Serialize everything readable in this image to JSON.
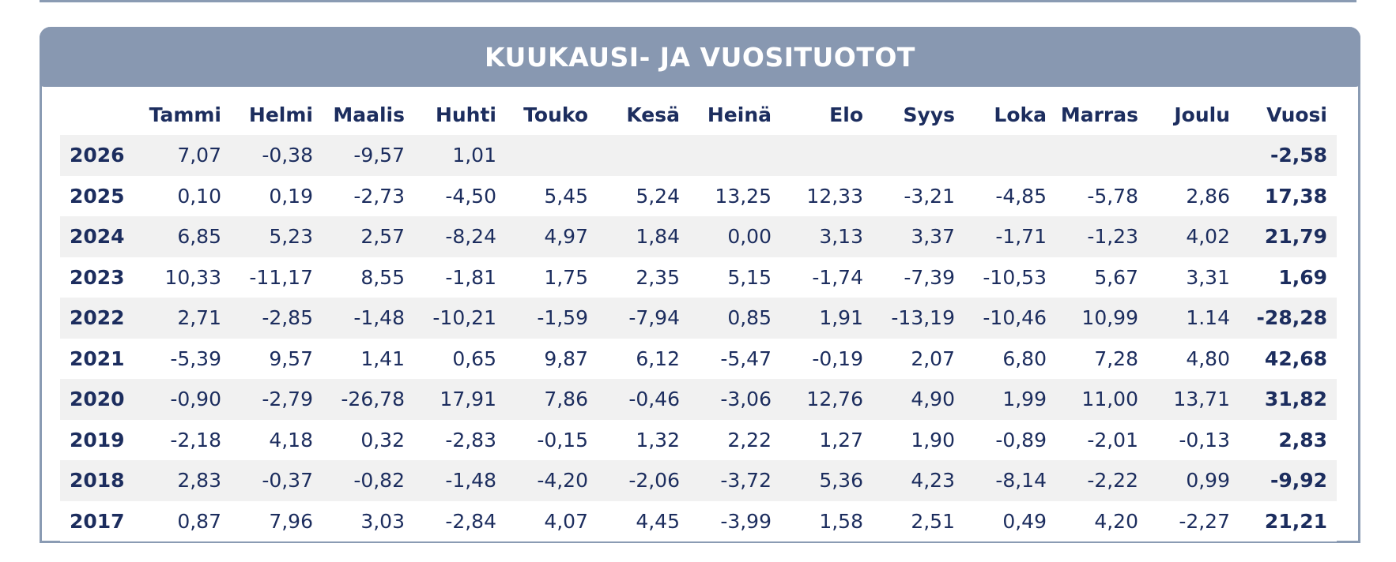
{
  "title": "KUUKAUSI- JA VUOSITUOTOT",
  "colors": {
    "header_bg": "#8898b1",
    "border": "#8a9bb3",
    "text": "#1c2d5e",
    "stripe": "#f1f1f1"
  },
  "columns": [
    "",
    "Tammi",
    "Helmi",
    "Maalis",
    "Huhti",
    "Touko",
    "Kesä",
    "Heinä",
    "Elo",
    "Syys",
    "Loka",
    "Marras",
    "Joulu",
    "Vuosi"
  ],
  "rows": [
    {
      "year": "2026",
      "months": [
        "7,07",
        "-0,38",
        "-9,57",
        "1,01",
        "",
        "",
        "",
        "",
        "",
        "",
        "",
        ""
      ],
      "total": "-2,58"
    },
    {
      "year": "2025",
      "months": [
        "0,10",
        "0,19",
        "-2,73",
        "-4,50",
        "5,45",
        "5,24",
        "13,25",
        "12,33",
        "-3,21",
        "-4,85",
        "-5,78",
        "2,86"
      ],
      "total": "17,38"
    },
    {
      "year": "2024",
      "months": [
        "6,85",
        "5,23",
        "2,57",
        "-8,24",
        "4,97",
        "1,84",
        "0,00",
        "3,13",
        "3,37",
        "-1,71",
        "-1,23",
        "4,02"
      ],
      "total": "21,79"
    },
    {
      "year": "2023",
      "months": [
        "10,33",
        "-11,17",
        "8,55",
        "-1,81",
        "1,75",
        "2,35",
        "5,15",
        "-1,74",
        "-7,39",
        "-10,53",
        "5,67",
        "3,31"
      ],
      "total": "1,69"
    },
    {
      "year": "2022",
      "months": [
        "2,71",
        "-2,85",
        "-1,48",
        "-10,21",
        "-1,59",
        "-7,94",
        "0,85",
        "1,91",
        "-13,19",
        "-10,46",
        "10,99",
        "1.14"
      ],
      "total": "-28,28"
    },
    {
      "year": "2021",
      "months": [
        "-5,39",
        "9,57",
        "1,41",
        "0,65",
        "9,87",
        "6,12",
        "-5,47",
        "-0,19",
        "2,07",
        "6,80",
        "7,28",
        "4,80"
      ],
      "total": "42,68"
    },
    {
      "year": "2020",
      "months": [
        "-0,90",
        "-2,79",
        "-26,78",
        "17,91",
        "7,86",
        "-0,46",
        "-3,06",
        "12,76",
        "4,90",
        "1,99",
        "11,00",
        "13,71"
      ],
      "total": "31,82"
    },
    {
      "year": "2019",
      "months": [
        "-2,18",
        "4,18",
        "0,32",
        "-2,83",
        "-0,15",
        "1,32",
        "2,22",
        "1,27",
        "1,90",
        "-0,89",
        "-2,01",
        "-0,13"
      ],
      "total": "2,83"
    },
    {
      "year": "2018",
      "months": [
        "2,83",
        "-0,37",
        "-0,82",
        "-1,48",
        "-4,20",
        "-2,06",
        "-3,72",
        "5,36",
        "4,23",
        "-8,14",
        "-2,22",
        "0,99"
      ],
      "total": "-9,92"
    },
    {
      "year": "2017",
      "months": [
        "0,87",
        "7,96",
        "3,03",
        "-2,84",
        "4,07",
        "4,45",
        "-3,99",
        "1,58",
        "2,51",
        "0,49",
        "4,20",
        "-2,27"
      ],
      "total": "21,21"
    }
  ]
}
